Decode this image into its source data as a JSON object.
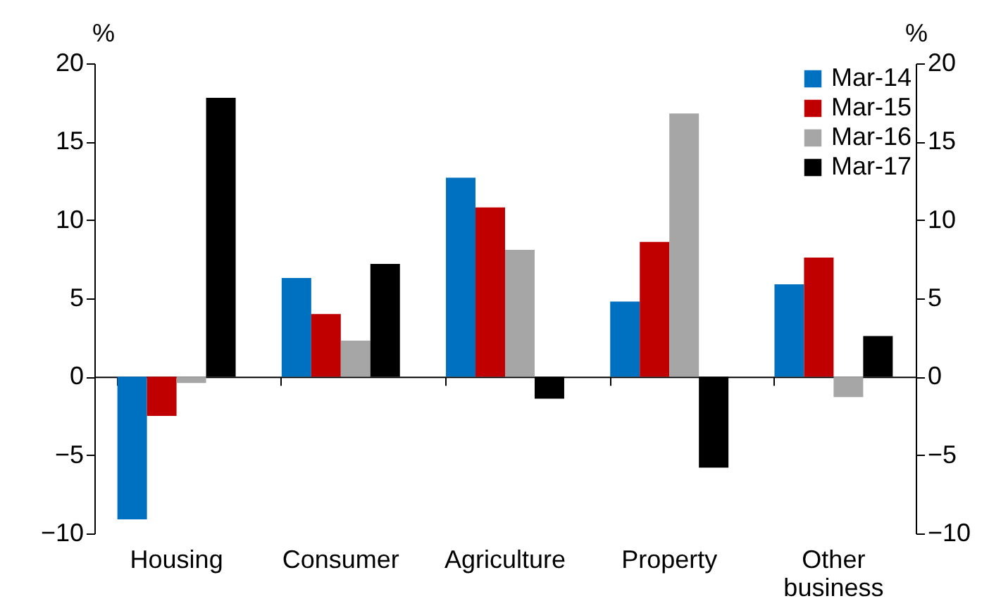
{
  "chart_data": {
    "type": "bar",
    "ylabel": "%",
    "y2label": "%",
    "categories": [
      "Housing",
      "Consumer",
      "Agriculture",
      "Property",
      "Other business"
    ],
    "series": [
      {
        "name": "Mar-14",
        "color": "#0070c0",
        "values": [
          -9.1,
          6.3,
          12.7,
          4.8,
          5.9
        ]
      },
      {
        "name": "Mar-15",
        "color": "#c00000",
        "values": [
          -2.5,
          4.0,
          10.8,
          8.6,
          7.6
        ]
      },
      {
        "name": "Mar-16",
        "color": "#a6a6a6",
        "values": [
          -0.4,
          2.3,
          8.1,
          16.8,
          -1.3
        ]
      },
      {
        "name": "Mar-17",
        "color": "#000000",
        "values": [
          17.8,
          7.2,
          -1.4,
          -5.8,
          2.6
        ]
      }
    ],
    "ylim": [
      -10,
      20
    ],
    "yticks": [
      -10,
      -5,
      0,
      5,
      10,
      15,
      20
    ],
    "y2lim": [
      -10,
      20
    ],
    "y2ticks": [
      -10,
      -5,
      0,
      5,
      10,
      15,
      20
    ],
    "legend": "top right"
  }
}
